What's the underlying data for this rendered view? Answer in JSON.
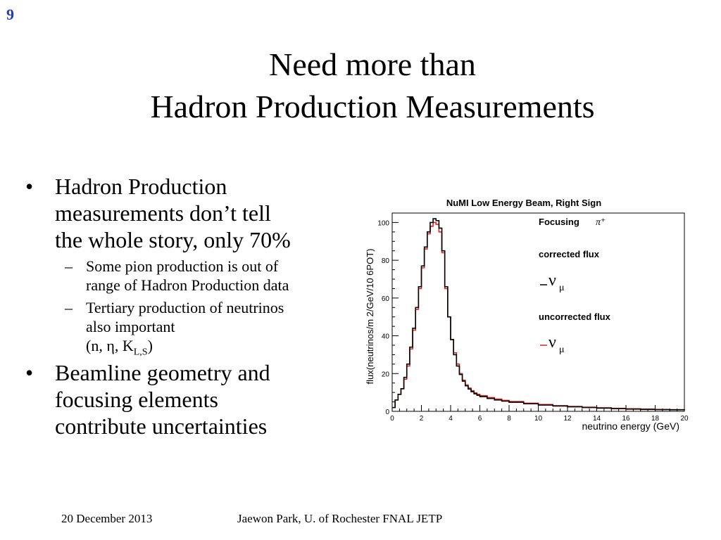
{
  "slide": {
    "number": "9",
    "title_line1": "Need more than",
    "title_line2": "Hadron Production Measurements"
  },
  "bullets": [
    {
      "lines": [
        "Hadron Production",
        "measurements don’t tell",
        "the whole story, only 70%"
      ],
      "subs": [
        {
          "lines": [
            "Some pion production is out of",
            "range of Hadron Production data"
          ]
        },
        {
          "lines": [
            "Tertiary production of neutrinos",
            "also important"
          ],
          "extra_prefix": "(n, η, K",
          "extra_sub": "L,S",
          "extra_suffix": ")"
        }
      ]
    },
    {
      "lines": [
        "Beamline geometry and",
        "focusing elements",
        "contribute uncertainties"
      ]
    }
  ],
  "markers": {
    "bullet": "•",
    "dash": "–"
  },
  "footer": {
    "date": "20 December 2013",
    "author": "Jaewon Park, U. of Rochester  FNAL JETP"
  },
  "chart_data": {
    "type": "line",
    "title": "NuMI Low Energy Beam, Right Sign",
    "xlabel": "neutrino energy (GeV)",
    "ylabel": "flux(neutrinos/m 2/GeV/10 6POT)",
    "xlim": [
      0,
      20
    ],
    "ylim": [
      0,
      105
    ],
    "xticks": [
      0,
      2,
      4,
      6,
      8,
      10,
      12,
      14,
      16,
      18,
      20
    ],
    "yticks": [
      0,
      20,
      40,
      60,
      80,
      100
    ],
    "grid": false,
    "legend_position": "right",
    "legend": {
      "focusing_label": "Focusing",
      "focusing_symbol": "π⁺",
      "corrected_label": "corrected flux",
      "uncorrected_label": "uncorrected flux",
      "nu_symbol": "ν",
      "mu_symbol": "μ"
    },
    "x": [
      0.0,
      0.2,
      0.4,
      0.6,
      0.8,
      1.0,
      1.2,
      1.4,
      1.6,
      1.8,
      2.0,
      2.2,
      2.4,
      2.6,
      2.8,
      3.0,
      3.2,
      3.4,
      3.6,
      3.8,
      4.0,
      4.2,
      4.4,
      4.6,
      4.8,
      5.0,
      5.2,
      5.4,
      5.6,
      5.8,
      6.0,
      6.5,
      7.0,
      7.5,
      8.0,
      9.0,
      10.0,
      11.0,
      12.0,
      13.0,
      14.0,
      15.0,
      16.0,
      17.0,
      18.0,
      19.0,
      20.0
    ],
    "series": [
      {
        "name": "corrected flux",
        "color": "#000000",
        "values": [
          2,
          6,
          9,
          12,
          18,
          25,
          34,
          44,
          55,
          66,
          77,
          87,
          95,
          100,
          102,
          101,
          97,
          85,
          66,
          50,
          38,
          30,
          24,
          19.5,
          16,
          13.5,
          11.8,
          10.4,
          9.3,
          8.5,
          7.8,
          6.8,
          6.0,
          5.4,
          4.8,
          4.0,
          3.3,
          2.8,
          2.4,
          2.0,
          1.7,
          1.4,
          1.2,
          1.0,
          0.9,
          0.8,
          0.6
        ]
      },
      {
        "name": "uncorrected flux",
        "color": "#e8241d",
        "values": [
          2,
          6,
          9,
          12,
          17,
          24,
          33,
          43,
          54,
          65,
          76,
          86,
          94,
          98,
          100,
          99,
          95,
          84,
          65,
          50,
          38,
          31,
          25,
          20,
          16.5,
          14,
          12.3,
          10.9,
          9.8,
          9.0,
          8.3,
          7.3,
          6.5,
          5.8,
          5.2,
          4.3,
          3.6,
          3.0,
          2.6,
          2.2,
          1.9,
          1.6,
          1.4,
          1.2,
          1.0,
          0.9,
          0.7
        ]
      }
    ]
  }
}
